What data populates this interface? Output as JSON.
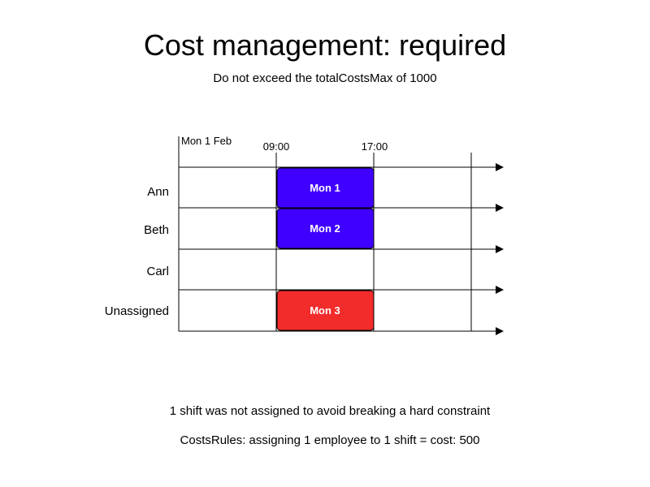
{
  "title": "Cost management: required",
  "subtitle": "Do not exceed the totalCostsMax of 1000",
  "schedule": {
    "date_label": "Mon 1 Feb",
    "time_labels": [
      "09:00",
      "17:00"
    ],
    "rows": [
      "Ann",
      "Beth",
      "Carl",
      "Unassigned"
    ],
    "shifts": [
      {
        "label": "Mon 1",
        "row": 0,
        "start": "09:00",
        "end": "17:00",
        "color": "#4000ff",
        "text_color": "#ffffff"
      },
      {
        "label": "Mon 2",
        "row": 1,
        "start": "09:00",
        "end": "17:00",
        "color": "#4000ff",
        "text_color": "#ffffff"
      },
      {
        "label": "Mon 3",
        "row": 3,
        "start": "09:00",
        "end": "17:00",
        "color": "#f22b2b",
        "text_color": "#ffffff"
      }
    ]
  },
  "notes": {
    "unassigned": "1 shift was not assigned to avoid breaking a hard constraint",
    "cost_rules": "CostsRules: assigning 1 employee to 1 shift = cost: 500"
  }
}
